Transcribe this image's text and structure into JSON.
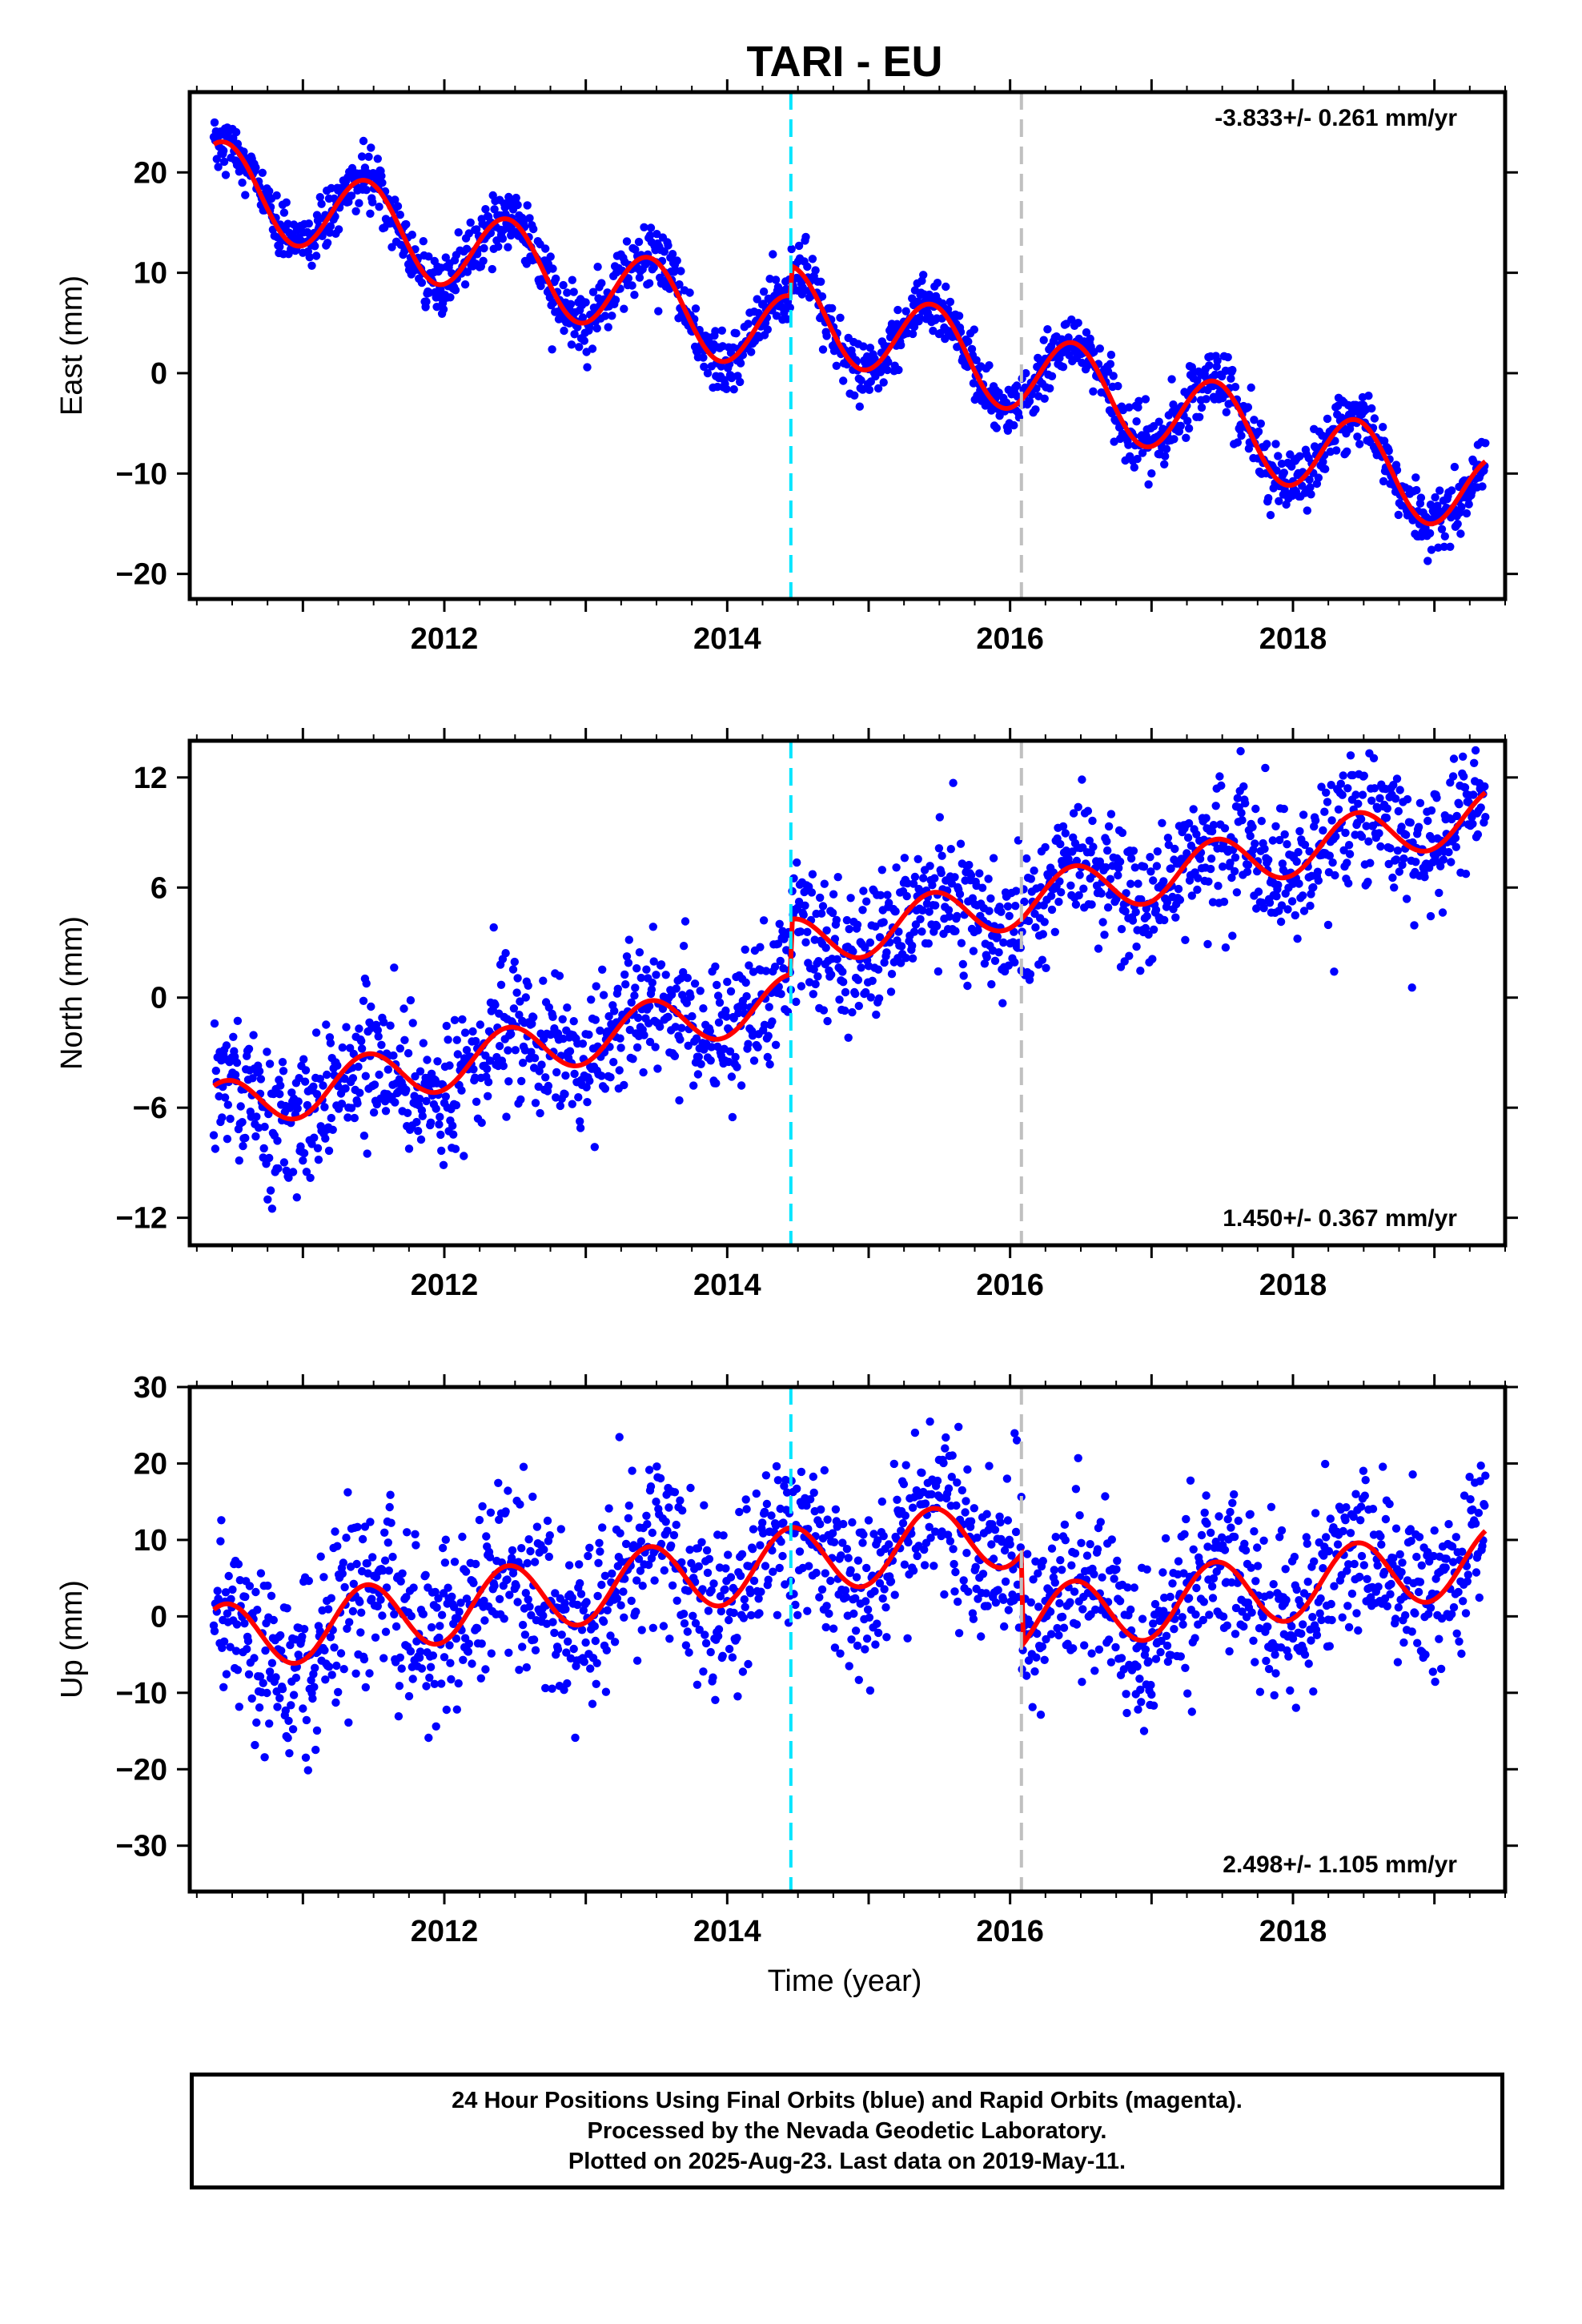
{
  "chart_data": {
    "title": "TARI - EU",
    "footer_lines": [
      "24 Hour Positions Using Final Orbits (blue) and Rapid Orbits (magenta).",
      "Processed by the Nevada Geodetic Laboratory.",
      "Plotted on 2025-Aug-23. Last data on 2019-May-11."
    ],
    "xlabel": "Time (year)",
    "xlim": [
      2010.2,
      2019.5
    ],
    "xticks": [
      2012,
      2014,
      2016,
      2018
    ],
    "data_start": 2010.37,
    "data_end": 2019.36,
    "vlines": [
      {
        "x": 2014.45,
        "color": "#00e5ff",
        "style": "dashed"
      },
      {
        "x": 2016.08,
        "color": "#c0c0c0",
        "style": "dashed"
      }
    ],
    "colors": {
      "points": "#0000ff",
      "model": "#ff0000"
    },
    "panels": [
      {
        "type": "scatter",
        "component": "east",
        "ylabel": "East (mm)",
        "ylim": [
          -22.5,
          28
        ],
        "yticks": [
          -20,
          -10,
          0,
          10,
          20
        ],
        "rate": "-3.833+/- 0.261 mm/yr",
        "rate_position": "top-right",
        "trend": {
          "t0": 2010.4,
          "y0": 19.0,
          "slope": -3.833
        },
        "seasonal_amplitude": 4.2,
        "steps": [
          {
            "x": 2014.45,
            "dy": 3.0
          }
        ],
        "scatter_sd": 1.5
      },
      {
        "type": "scatter",
        "component": "north",
        "ylabel": "North (mm)",
        "ylim": [
          -13.5,
          14
        ],
        "yticks": [
          -12,
          -6,
          0,
          6,
          12
        ],
        "rate": "1.450+/- 0.367 mm/yr",
        "rate_position": "bottom-right",
        "trend": {
          "t0": 2010.4,
          "y0": -6.0,
          "slope": 1.45
        },
        "seasonal_amplitude": 1.4,
        "steps": [
          {
            "x": 2014.45,
            "dy": 3.0
          }
        ],
        "scatter_sd": 1.9
      },
      {
        "type": "scatter",
        "component": "up",
        "ylabel": "Up (mm)",
        "ylim": [
          -36,
          30
        ],
        "yticks": [
          -30,
          -20,
          -10,
          0,
          10,
          20,
          30
        ],
        "rate": "2.498+/- 1.105 mm/yr",
        "rate_position": "bottom-right",
        "trend": {
          "t0": 2010.4,
          "y0": -3.0,
          "slope": 2.498
        },
        "seasonal_amplitude": 4.5,
        "steps": [
          {
            "x": 2016.08,
            "dy": -12.0
          }
        ],
        "scatter_sd": 5.5
      }
    ]
  }
}
